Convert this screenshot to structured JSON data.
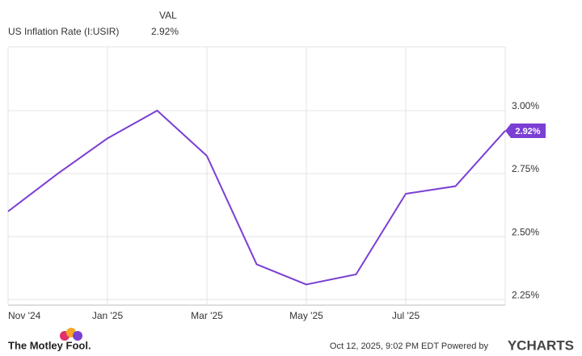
{
  "chart_data": {
    "type": "line",
    "value_header": "VAL",
    "categories": [
      "Nov '24",
      null,
      "Jan '25",
      null,
      "Mar '25",
      null,
      "May '25",
      null,
      "Jul '25",
      null,
      null
    ],
    "series": [
      {
        "name": "US Inflation Rate (I:USIR)",
        "color": "#7b3fd4",
        "values": [
          2.6,
          2.75,
          2.89,
          3.0,
          2.82,
          2.39,
          2.31,
          2.35,
          2.67,
          2.7,
          2.92
        ],
        "value_labels": [
          null,
          null,
          null,
          null,
          null,
          null,
          null,
          null,
          null,
          null,
          "2.92%"
        ]
      }
    ],
    "ylim": [
      2.228,
      3.253
    ],
    "yticks": [
      {
        "value": 2.25,
        "label": "2.25%"
      },
      {
        "value": 2.5,
        "label": "2.50%"
      },
      {
        "value": 2.75,
        "label": "2.75%"
      },
      {
        "value": 3,
        "label": "3.00%"
      }
    ],
    "grid": true,
    "footer": {
      "brand": "The Motley Fool.",
      "timestamp": "Oct 12, 2025, 9:02 PM EDT Powered by",
      "provider": "YCHARTS"
    }
  }
}
